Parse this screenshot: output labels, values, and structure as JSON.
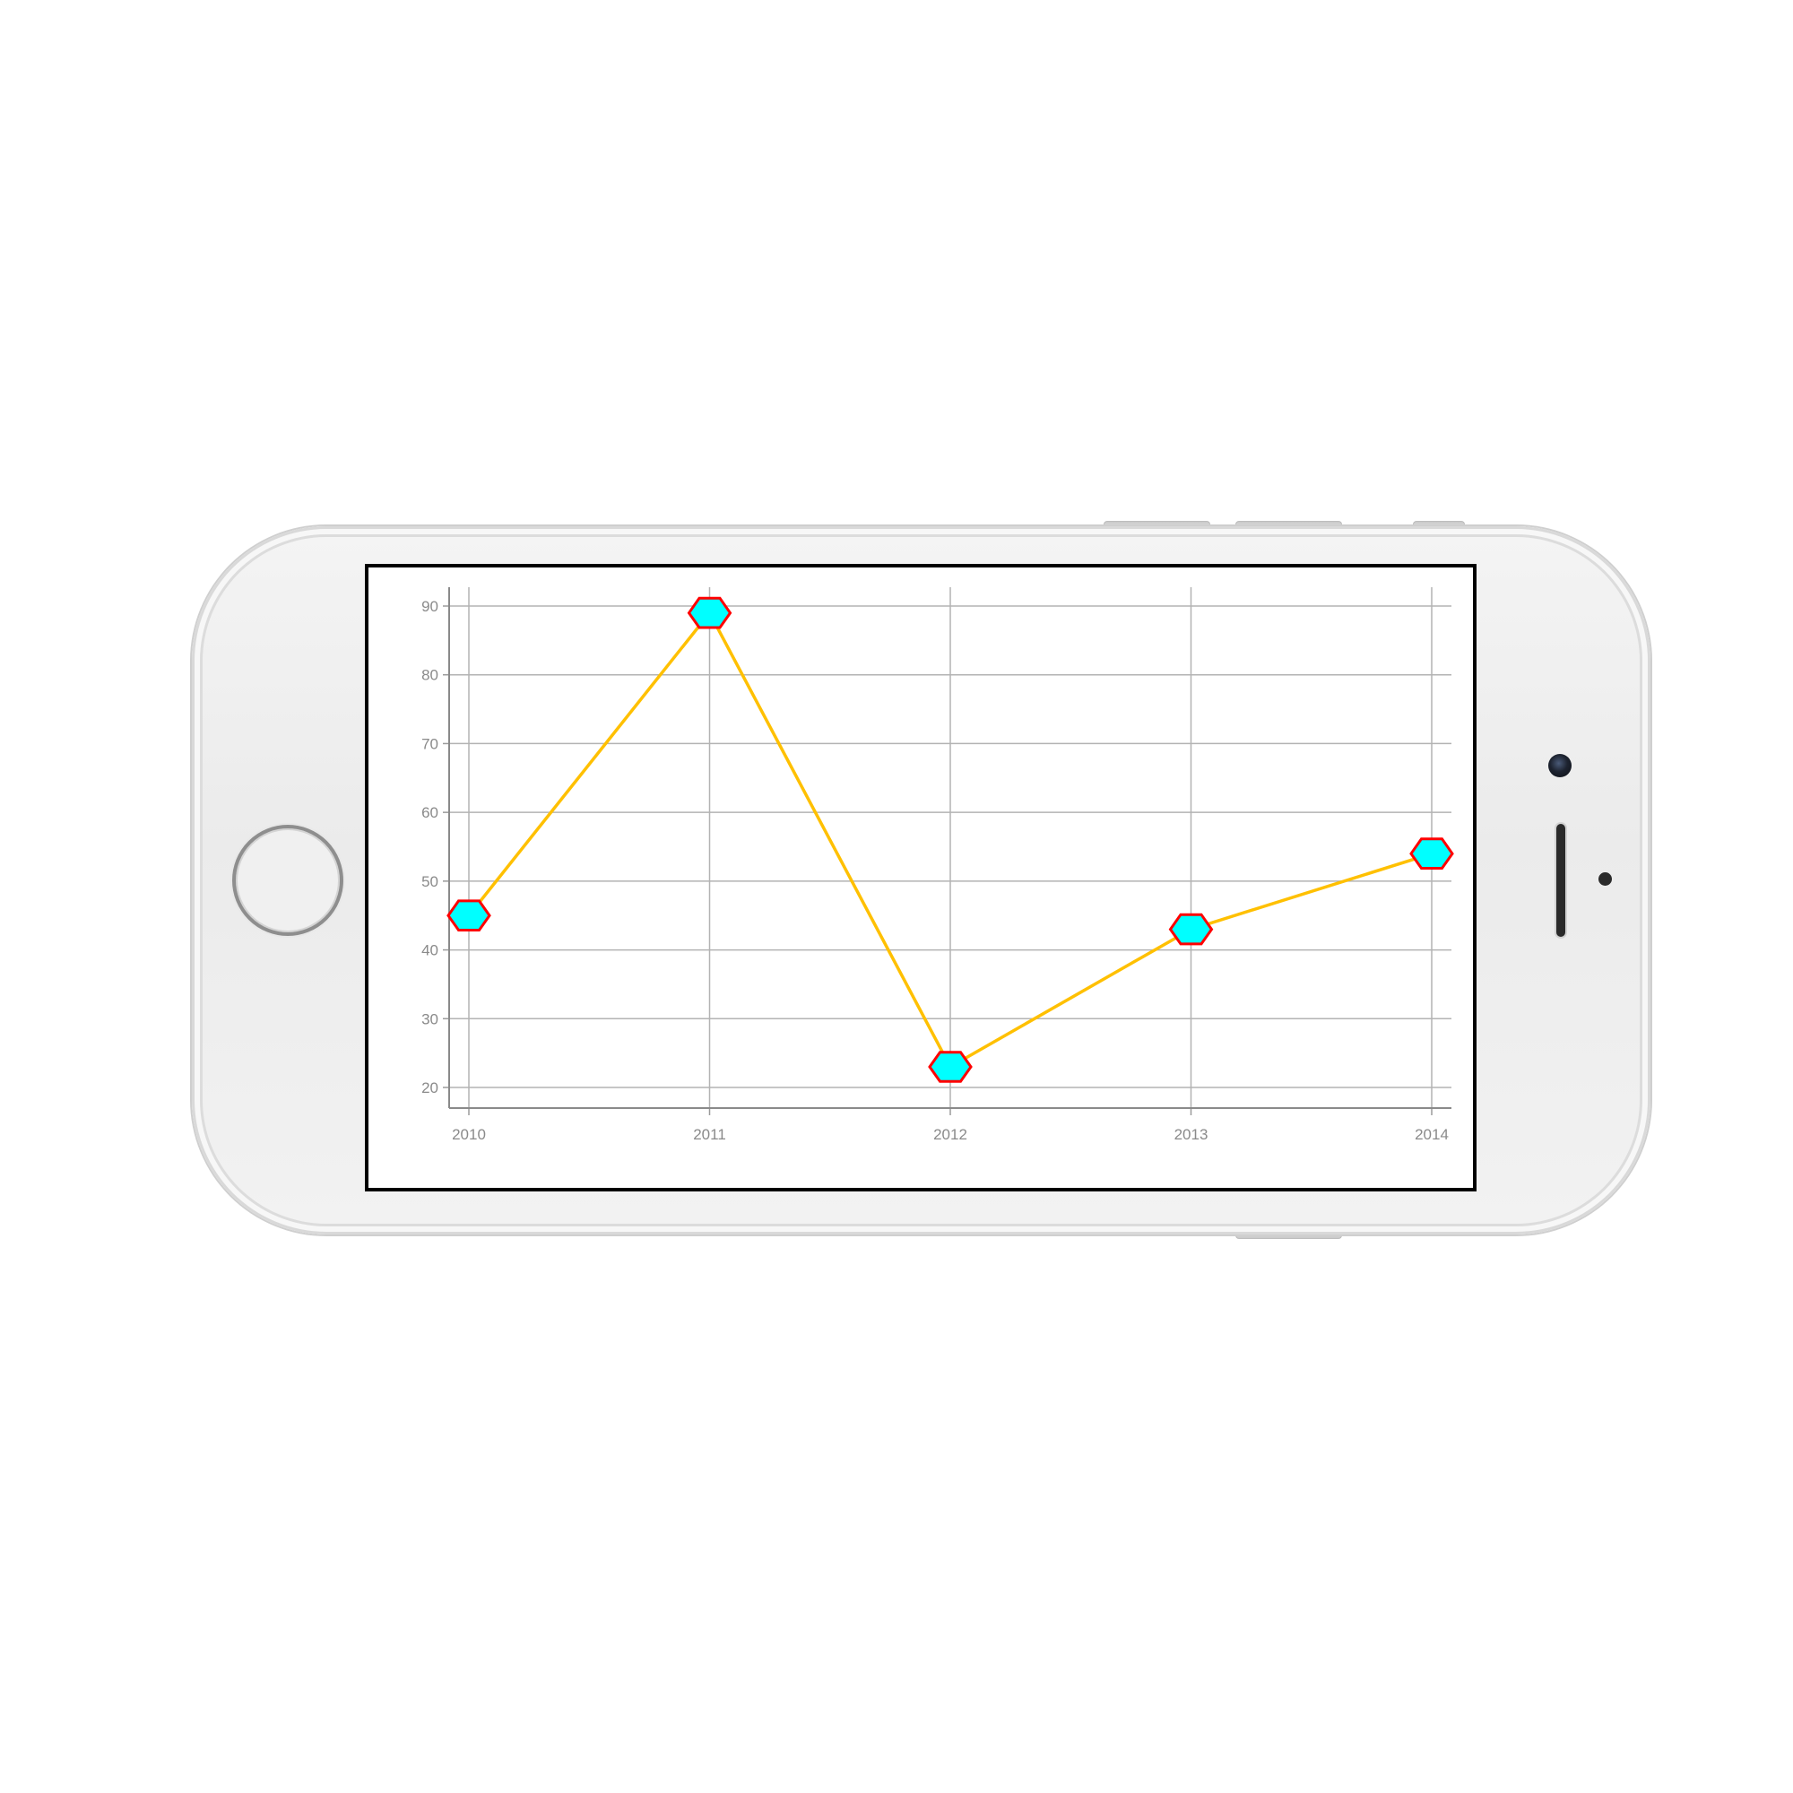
{
  "device": {
    "model_icon": "iphone-landscape-icon",
    "frame_color": "#efefef"
  },
  "chart_data": {
    "type": "line",
    "title": "",
    "xlabel": "",
    "ylabel": "",
    "categories": [
      "2010",
      "2011",
      "2012",
      "2013",
      "2014"
    ],
    "series": [
      {
        "values": [
          45,
          89,
          23,
          43,
          54
        ],
        "line_color": "#ffc000",
        "marker": "hexagon",
        "marker_fill": "#00ffff",
        "marker_stroke": "#ff0000"
      }
    ],
    "ylim": [
      20,
      90
    ],
    "yticks": [
      20,
      30,
      40,
      50,
      60,
      70,
      80,
      90
    ],
    "ytick_labels": [
      "20",
      "30",
      "40",
      "50",
      "60",
      "70",
      "80",
      "90"
    ],
    "grid": true,
    "grid_color": "#b3b3b3",
    "legend": "none"
  }
}
